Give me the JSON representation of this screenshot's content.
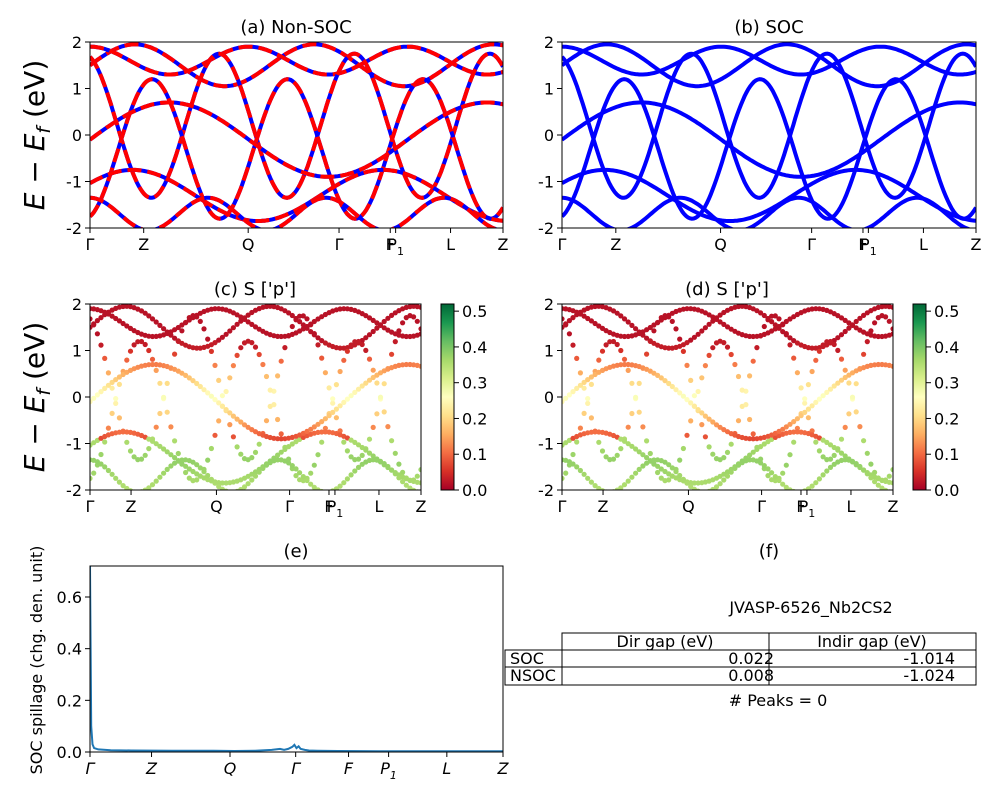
{
  "chart_data": [
    {
      "id": "a",
      "type": "line",
      "title": "(a) Non-SOC",
      "ylabel": "E − E_f (eV)",
      "ylim": [
        -2,
        2
      ],
      "yticks": [
        -2,
        -1,
        0,
        1,
        2
      ],
      "xticks": [
        "Γ",
        "Z",
        "Q",
        "Γ",
        "F",
        "P1",
        "L",
        "Z"
      ],
      "series_colors": [
        "#0000ff",
        "#ff0000"
      ],
      "series_style": "blue solid overlaid by red dashed"
    },
    {
      "id": "b",
      "type": "line",
      "title": "(b) SOC",
      "ylim": [
        -2,
        2
      ],
      "yticks": [
        -2,
        -1,
        0,
        1,
        2
      ],
      "xticks": [
        "Γ",
        "Z",
        "Q",
        "Γ",
        "F",
        "P1",
        "L",
        "Z"
      ],
      "series_colors": [
        "#0000ff"
      ]
    },
    {
      "id": "c",
      "type": "scatter",
      "title": "(c)  S ['p']",
      "ylabel": "E − E_f (eV)",
      "ylim": [
        -2,
        2
      ],
      "yticks": [
        -2,
        -1,
        0,
        1,
        2
      ],
      "xticks": [
        "Γ",
        "Z",
        "Q",
        "Γ",
        "F",
        "P1",
        "L",
        "Z"
      ],
      "colorbar": {
        "min": 0.0,
        "max": 0.52,
        "ticks": [
          "0.0",
          "0.1",
          "0.2",
          "0.3",
          "0.4",
          "0.5"
        ],
        "colormap": "RdYlGn"
      }
    },
    {
      "id": "d",
      "type": "scatter",
      "title": "(d) S ['p']",
      "ylim": [
        -2,
        2
      ],
      "yticks": [
        -2,
        -1,
        0,
        1,
        2
      ],
      "xticks": [
        "Γ",
        "Z",
        "Q",
        "Γ",
        "F",
        "P1",
        "L",
        "Z"
      ],
      "colorbar": {
        "min": 0.0,
        "max": 0.52,
        "ticks": [
          "0.0",
          "0.1",
          "0.2",
          "0.3",
          "0.4",
          "0.5"
        ],
        "colormap": "RdYlGn"
      }
    },
    {
      "id": "e",
      "type": "line",
      "title": "(e)",
      "ylabel": "SOC spillage (chg. den. unit)",
      "ylim": [
        0.0,
        0.72
      ],
      "yticks": [
        "0.0",
        "0.2",
        "0.4",
        "0.6"
      ],
      "xticks": [
        "Γ",
        "Z",
        "Q",
        "Γ",
        "F",
        "P1",
        "L",
        "Z"
      ],
      "series_colors": [
        "#1f77b4"
      ],
      "x": [
        0,
        0.003,
        0.006,
        0.01,
        0.02,
        0.05,
        0.1,
        0.2,
        0.3,
        0.35,
        0.4,
        0.44,
        0.46,
        0.47,
        0.48,
        0.49,
        0.495,
        0.5,
        0.505,
        0.51,
        0.52,
        0.53,
        0.55,
        0.6,
        0.7,
        0.8,
        0.9,
        1.0
      ],
      "y": [
        0.72,
        0.1,
        0.03,
        0.015,
        0.01,
        0.007,
        0.006,
        0.005,
        0.005,
        0.004,
        0.005,
        0.008,
        0.012,
        0.008,
        0.012,
        0.02,
        0.028,
        0.015,
        0.022,
        0.012,
        0.008,
        0.006,
        0.005,
        0.004,
        0.003,
        0.003,
        0.003,
        0.003
      ]
    },
    {
      "id": "f",
      "type": "table",
      "title": "(f)",
      "subtitle": "JVASP-6526_Nb2CS2",
      "columns": [
        "Dir gap (eV)",
        "Indir gap (eV)"
      ],
      "rows": [
        {
          "label": "SOC",
          "values": [
            "0.022",
            "-1.014"
          ]
        },
        {
          "label": "NSOC",
          "values": [
            "0.008",
            "-1.024"
          ]
        }
      ],
      "footer": "# Peaks = 0"
    }
  ]
}
